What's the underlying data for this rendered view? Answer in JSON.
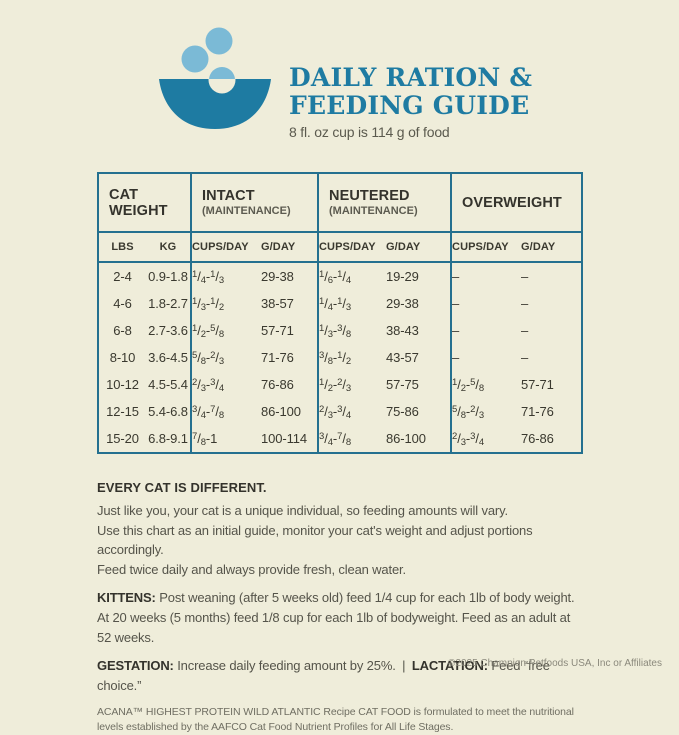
{
  "header": {
    "icon": "bowl-with-bubbles-icon",
    "title_line1": "DAILY RATION &",
    "title_line2": "FEEDING GUIDE",
    "subtitle": "8 fl. oz cup is 114 g of food"
  },
  "table": {
    "groups": [
      {
        "label": "CAT WEIGHT",
        "sublabel": ""
      },
      {
        "label": "INTACT",
        "sublabel": "(MAINTENANCE)"
      },
      {
        "label": "NEUTERED",
        "sublabel": "(MAINTENANCE)"
      },
      {
        "label": "OVERWEIGHT",
        "sublabel": ""
      }
    ],
    "columns": [
      "LBS",
      "KG",
      "CUPS/DAY",
      "G/DAY",
      "CUPS/DAY",
      "G/DAY",
      "CUPS/DAY",
      "G/DAY"
    ],
    "rows": [
      [
        "2-4",
        "0.9-1.8",
        "1/4-1/3",
        "29-38",
        "1/6-1/4",
        "19-29",
        "–",
        "–"
      ],
      [
        "4-6",
        "1.8-2.7",
        "1/3-1/2",
        "38-57",
        "1/4-1/3",
        "29-38",
        "–",
        "–"
      ],
      [
        "6-8",
        "2.7-3.6",
        "1/2-5/8",
        "57-71",
        "1/3-3/8",
        "38-43",
        "–",
        "–"
      ],
      [
        "8-10",
        "3.6-4.5",
        "5/8-2/3",
        "71-76",
        "3/8-1/2",
        "43-57",
        "–",
        "–"
      ],
      [
        "10-12",
        "4.5-5.4",
        "2/3-3/4",
        "76-86",
        "1/2-2/3",
        "57-75",
        "1/2-5/8",
        "57-71"
      ],
      [
        "12-15",
        "5.4-6.8",
        "3/4-7/8",
        "86-100",
        "2/3-3/4",
        "75-86",
        "5/8-2/3",
        "71-76"
      ],
      [
        "15-20",
        "6.8-9.1",
        "7/8-1",
        "100-114",
        "3/4-7/8",
        "86-100",
        "2/3-3/4",
        "76-86"
      ]
    ]
  },
  "notes": {
    "heading": "EVERY CAT IS DIFFERENT.",
    "lines": [
      "Just like you, your cat is a unique individual, so feeding amounts will vary.",
      "Use this chart as an initial guide, monitor your cat's weight and adjust portions accordingly.",
      "Feed twice daily and always provide fresh, clean water."
    ],
    "kittens_label": "KITTENS:",
    "kittens_text": "Post weaning (after 5 weeks old) feed 1/4 cup for each 1lb of body weight.",
    "kittens_text2": "At 20 weeks (5 months) feed 1/8 cup for each 1lb of bodyweight. Feed as an adult at 52 weeks.",
    "gestation_label": "GESTATION:",
    "gestation_text": "Increase daily feeding amount by 25%.",
    "separator": "|",
    "lactation_label": "LACTATION:",
    "lactation_text": "Feed “free choice.”"
  },
  "footer": {
    "disclaimer": "ACANA™ HIGHEST PROTEIN WILD ATLANTIC Recipe CAT FOOD is formulated to meet the nutritional levels established by the AAFCO Cat Food Nutrient Profiles for All Life Stages.",
    "copyright": "©2025 Champion Petfoods USA, Inc or Affiliates"
  },
  "colors": {
    "background": "#efedda",
    "teal": "#1e7ba2",
    "table_border": "#24708f",
    "bubble_blue": "#7bbad6",
    "dark_text": "#34332c",
    "body_text": "#55544a"
  }
}
